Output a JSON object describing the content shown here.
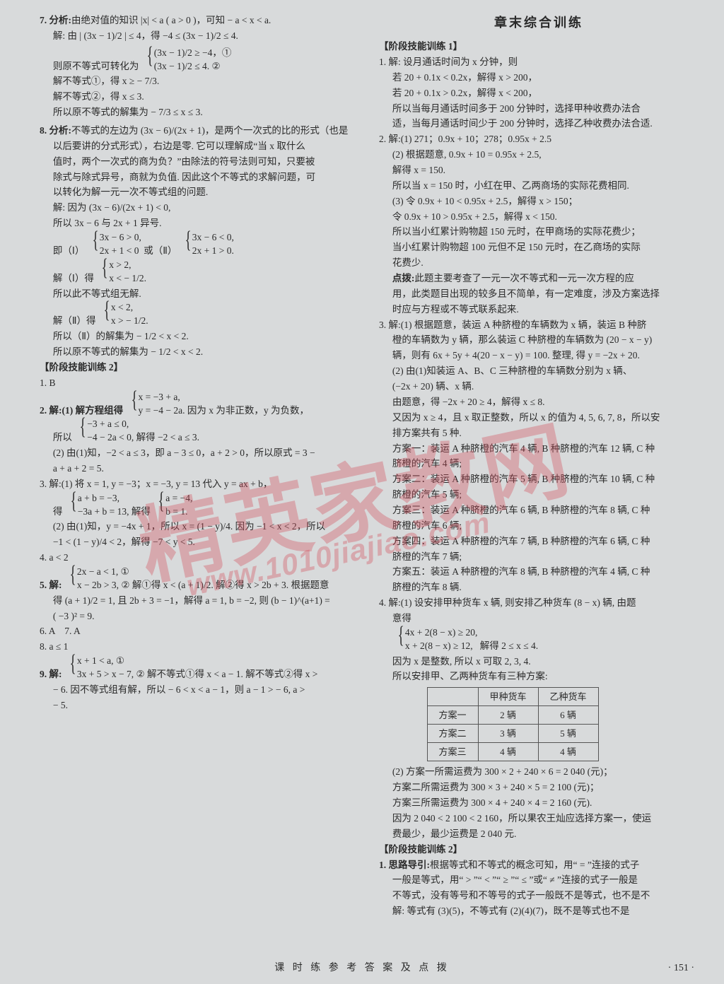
{
  "left": {
    "q7_label": "7. 分析:",
    "q7_line1": "由绝对值的知识 |x| < a ( a > 0 )，可知 − a < x < a.",
    "q7_line2_pre": "解: 由",
    "q7_line2_mid": "| (3x − 1)/2 | ≤ 4，得 −4 ≤ (3x − 1)/2 ≤ 4.",
    "q7_b_intro": "则原不等式可转化为",
    "q7_b1": "(3x − 1)/2 ≥ −4，①",
    "q7_b2": "(3x − 1)/2 ≤ 4.  ②",
    "q7_s1": "解不等式①，得 x ≥ − 7/3.",
    "q7_s2": "解不等式②，得 x ≤ 3.",
    "q7_s3": "所以原不等式的解集为 − 7/3 ≤ x ≤ 3.",
    "q8_label": "8. 分析:",
    "q8_l1": "不等式的左边为 (3x − 6)/(2x + 1)，是两个一次式的比的形式（也是",
    "q8_l2": "以后要讲的分式形式），右边是零. 它可以理解成“当 x 取什么",
    "q8_l3": "值时，两个一次式的商为负？”由除法的符号法则可知，只要被",
    "q8_l4": "除式与除式异号，商就为负值. 因此这个不等式的求解问题，可",
    "q8_l5": "以转化为解一元一次不等式组的问题.",
    "q8_s1_pre": "解: 因为 (3x − 6)/(2x + 1) < 0,",
    "q8_s2": "所以 3x − 6 与 2x + 1 异号.",
    "q8_s3_pre": "即（Ⅰ）",
    "q8_s3_b1a": "3x − 6 > 0,",
    "q8_s3_b1b": "2x + 1 < 0",
    "q8_s3_mid": " 或（Ⅱ）",
    "q8_s3_b2a": "3x − 6 < 0,",
    "q8_s3_b2b": "2x + 1 > 0.",
    "q8_s4_pre": "解（Ⅰ）得",
    "q8_s4_b1": "x > 2,",
    "q8_s4_b2": "x < − 1/2.",
    "q8_s5": "所以此不等式组无解.",
    "q8_s6_pre": "解（Ⅱ）得",
    "q8_s6_b1": "x < 2,",
    "q8_s6_b2": "x > − 1/2.",
    "q8_s7": "所以（Ⅱ）的解集为 − 1/2 < x < 2.",
    "q8_s8": "所以原不等式的解集为 − 1/2 < x < 2.",
    "stage2_title": "【阶段技能训练 2】",
    "s2_1": "1. B",
    "s2_2_pre": "2. 解:(1) 解方程组得",
    "s2_2_b1": "x = −3 + a,",
    "s2_2_b2": "y = −4 − 2a.",
    "s2_2_tail": " 因为 x 为非正数，y 为负数，",
    "s2_2_l2_pre": "所以",
    "s2_2_l2_b1": "−3 + a ≤ 0,",
    "s2_2_l2_b2": "−4 − 2a < 0,",
    "s2_2_l2_tail": " 解得 −2 < a ≤ 3.",
    "s2_2_l3": "(2) 由(1)知，−2 < a ≤ 3，即 a − 3 ≤ 0，a + 2 > 0，所以原式 = 3 −",
    "s2_2_l4": "a + a + 2 = 5.",
    "s2_3_l1": "3. 解:(1) 将 x = 1, y = −3；x = −3, y = 13 代入 y = ax + b，",
    "s2_3_b_pre": "得",
    "s2_3_b1a": "a + b = −3,",
    "s2_3_b1b": "−3a + b = 13,",
    "s2_3_mid": " 解得",
    "s2_3_b2a": "a = −4,",
    "s2_3_b2b": "b = 1.",
    "s2_3_l2": "(2) 由(1)知，y = −4x + 1，所以 x = (1 − y)/4. 因为 −1 < x < 2，所以",
    "s2_3_l3": "−1 < (1 − y)/4 < 2，解得 −7 < y < 5.",
    "s2_4": "4. a < 2",
    "s2_5_pre": "5. 解:",
    "s2_5_b1": "2x − a < 1, ①",
    "s2_5_b2": "x − 2b > 3, ②",
    "s2_5_tail": " 解①得 x < (a + 1)/2. 解②得 x > 2b + 3. 根据题意",
    "s2_5_l2": "得 (a + 1)/2 = 1, 且 2b + 3 = −1，解得 a = 1, b = −2, 则 (b − 1)^(a+1) =",
    "s2_5_l3": "( −3 )² = 9.",
    "s2_67": "6. A　7. A",
    "s2_8": "8. a ≤ 1",
    "s2_9_pre": "9. 解:",
    "s2_9_b1": "x + 1 < a, ①",
    "s2_9_b2": "3x + 5 > x − 7, ②",
    "s2_9_tail": " 解不等式①得 x < a − 1. 解不等式②得 x >",
    "s2_9_l2": "− 6. 因不等式组有解，所以 − 6 < x < a − 1，则 a − 1 > − 6, a >",
    "s2_9_l3": "− 5."
  },
  "right": {
    "heading": "章末综合训练",
    "stage1_title": "【阶段技能训练 1】",
    "r1_l1": "1. 解: 设月通话时间为 x 分钟，则",
    "r1_l2": "若 20 + 0.1x < 0.2x，解得 x > 200，",
    "r1_l3": "若 20 + 0.1x > 0.2x，解得 x < 200，",
    "r1_l4": "所以当每月通话时间多于 200 分钟时，选择甲种收费办法合",
    "r1_l5": "适，当每月通话时间少于 200 分钟时，选择乙种收费办法合适.",
    "r2_l1": "2. 解:(1) 271；0.9x + 10；278；0.95x + 2.5",
    "r2_l2": "(2) 根据题意, 0.9x + 10 = 0.95x + 2.5,",
    "r2_l3": "解得 x = 150.",
    "r2_l4": "所以当 x = 150 时，小红在甲、乙两商场的实际花费相同.",
    "r2_l5": "(3) 令 0.9x + 10 < 0.95x + 2.5，解得 x > 150；",
    "r2_l6": "令 0.9x + 10 > 0.95x + 2.5，解得 x < 150.",
    "r2_l7": "所以当小红累计购物超 150 元时，在甲商场的实际花费少；",
    "r2_l8": "当小红累计购物超 100 元但不足 150 元时，在乙商场的实际",
    "r2_l9": "花费少.",
    "r2_tip_lbl": "点拨:",
    "r2_tip1": "此题主要考查了一元一次不等式和一元一次方程的应",
    "r2_tip2": "用，此类题目出现的较多且不简单，有一定难度，涉及方案选择",
    "r2_tip3": "时应与方程或不等式联系起来.",
    "r3_l1": "3. 解:(1) 根据题意，装运 A 种脐橙的车辆数为 x 辆，装运 B 种脐",
    "r3_l1b": "橙的车辆数为 y 辆，那么装运 C 种脐橙的车辆数为 (20 − x − y)",
    "r3_l1c": "辆，则有 6x + 5y + 4(20 − x − y) = 100. 整理, 得 y = −2x + 20.",
    "r3_l2": "(2) 由(1)知装运 A、B、C 三种脐橙的车辆数分别为 x 辆、",
    "r3_l2b": "(−2x + 20) 辆、x 辆.",
    "r3_l3": "由题意，得 −2x + 20 ≥ 4，解得 x ≤ 8.",
    "r3_l4": "又因为 x ≥ 4，且 x 取正整数，所以 x 的值为 4, 5, 6, 7, 8，所以安",
    "r3_l4b": "排方案共有 5 种.",
    "r3_p1": "方案一：装运 A 种脐橙的汽车 4 辆, B 种脐橙的汽车 12 辆, C 种",
    "r3_p1b": "脐橙的汽车 4 辆;",
    "r3_p2": "方案二：装运 A 种脐橙的汽车 5 辆, B 种脐橙的汽车 10 辆, C 种",
    "r3_p2b": "脐橙的汽车 5 辆;",
    "r3_p3": "方案三：装运 A 种脐橙的汽车 6 辆, B 种脐橙的汽车 8 辆, C 种",
    "r3_p3b": "脐橙的汽车 6 辆;",
    "r3_p4": "方案四：装运 A 种脐橙的汽车 7 辆, B 种脐橙的汽车 6 辆, C 种",
    "r3_p4b": "脐橙的汽车 7 辆;",
    "r3_p5": "方案五：装运 A 种脐橙的汽车 8 辆, B 种脐橙的汽车 4 辆, C 种",
    "r3_p5b": "脐橙的汽车 8 辆.",
    "r4_l1": "4. 解:(1) 设安排甲种货车 x 辆, 则安排乙种货车 (8 − x) 辆, 由题",
    "r4_l1b": "意得",
    "r4_b1": "4x + 2(8 − x) ≥ 20,",
    "r4_b2": "x + 2(8 − x) ≥ 12,",
    "r4_btail": " 解得 2 ≤ x ≤ 4.",
    "r4_l2": "因为 x 是整数, 所以 x 可取 2, 3, 4.",
    "r4_l3": "所以安排甲、乙两种货车有三种方案:",
    "tbl": {
      "h1": "",
      "h2": "甲种货车",
      "h3": "乙种货车",
      "r1c1": "方案一",
      "r1c2": "2 辆",
      "r1c3": "6 辆",
      "r2c1": "方案二",
      "r2c2": "3 辆",
      "r2c3": "5 辆",
      "r3c1": "方案三",
      "r3c2": "4 辆",
      "r3c3": "4 辆"
    },
    "r4_c1": "(2) 方案一所需运费为 300 × 2 + 240 × 6 = 2 040 (元)；",
    "r4_c2": "方案二所需运费为 300 × 3 + 240 × 5 = 2 100 (元)；",
    "r4_c3": "方案三所需运费为 300 × 4 + 240 × 4 = 2 160 (元).",
    "r4_c4": "因为 2 040 < 2 100 < 2 160，所以果农王灿应选择方案一，使运",
    "r4_c5": "费最少，最少运费是 2 040 元.",
    "stage2r_title": "【阶段技能训练 2】",
    "rs_l1_lb": "1. 思路导引:",
    "rs_l1": "根据等式和不等式的概念可知，用“ = ”连接的式子",
    "rs_l2": "一般是等式，用“ > ”“ < ”“ ≥ ”“ ≤ ”或“ ≠ ”连接的式子一般是",
    "rs_l3": "不等式，没有等号和不等号的式子一般既不是等式，也不是不",
    "rs_l4": "解: 等式有 (3)(5)，不等式有 (2)(4)(7)，既不是等式也不是"
  },
  "footer": "课 时 练 参 考 答 案 及 点 拨",
  "pagenum": "· 151 ·",
  "watermark_text": "精英家教网",
  "watermark_url": "www.1010jiajiao.com"
}
